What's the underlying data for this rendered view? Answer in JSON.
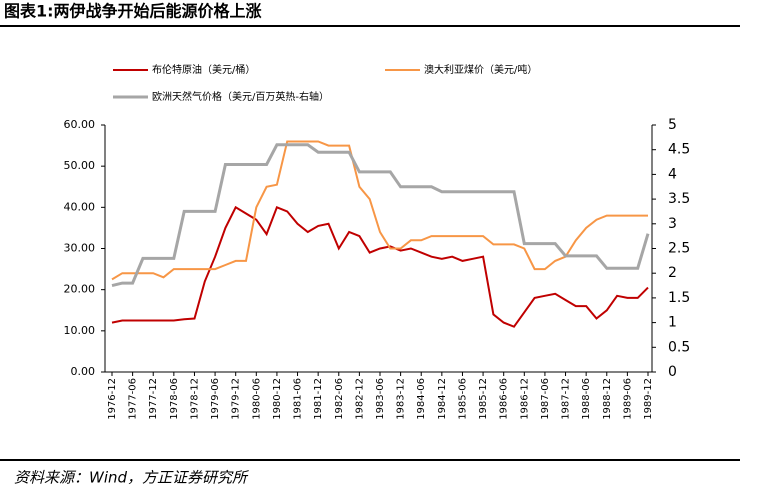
{
  "chart_data": {
    "type": "line",
    "title": "图表1:两伊战争开始后能源价格上涨",
    "source": "资料来源：Wind，方正证券研究所",
    "categories": [
      "1976-12",
      null,
      "1977-06",
      null,
      "1977-12",
      null,
      "1978-06",
      null,
      "1978-12",
      null,
      "1979-06",
      null,
      "1979-12",
      null,
      "1980-06",
      null,
      "1980-12",
      null,
      "1981-06",
      null,
      "1981-12",
      null,
      "1982-06",
      null,
      "1982-12",
      null,
      "1983-06",
      null,
      "1983-12",
      null,
      "1984-06",
      null,
      "1984-12",
      null,
      "1985-06",
      null,
      "1985-12",
      null,
      "1986-06",
      null,
      "1986-12",
      null,
      "1987-06",
      null,
      "1987-12",
      null,
      "1988-06",
      null,
      "1988-12",
      null,
      "1989-06",
      null,
      "1989-12"
    ],
    "series": [
      {
        "name": "布伦特原油（美元/桶）",
        "color": "#c00000",
        "values": [
          12,
          12.5,
          12.5,
          12.5,
          12.5,
          12.5,
          12.5,
          12.8,
          13,
          22,
          28,
          35,
          40,
          38.5,
          37,
          33.5,
          40,
          39,
          36,
          34,
          35.5,
          36,
          30,
          34,
          33,
          29,
          30,
          30.5,
          29.5,
          30,
          29,
          28,
          27.5,
          28,
          27,
          27.5,
          28,
          14,
          12,
          11,
          14.5,
          18,
          18.5,
          19,
          17.5,
          16,
          16,
          13,
          15,
          18.5,
          18,
          18,
          20.5
        ]
      },
      {
        "name": "澳大利亚煤价（美元/吨）",
        "color": "#f79646",
        "values": [
          22.5,
          24,
          24,
          24,
          24,
          23,
          25,
          25,
          25,
          25,
          25,
          26,
          27,
          27,
          40,
          45,
          45.5,
          56,
          56,
          56,
          56,
          55,
          55,
          55,
          45,
          42,
          34,
          30,
          30,
          32,
          32,
          33,
          33,
          33,
          33,
          33,
          33,
          31,
          31,
          31,
          30,
          25,
          25,
          27,
          28,
          32,
          35,
          37,
          38,
          38,
          38,
          38,
          38
        ]
      },
      {
        "name": "欧洲天然气价格（美元/百万英热-右轴）",
        "color": "#a6a6a6",
        "axis": "y2",
        "values": [
          1.75,
          1.8,
          1.8,
          2.3,
          2.3,
          2.3,
          2.3,
          3.25,
          3.25,
          3.25,
          3.25,
          4.2,
          4.2,
          4.2,
          4.2,
          4.2,
          4.6,
          4.6,
          4.6,
          4.6,
          4.45,
          4.45,
          4.45,
          4.45,
          4.05,
          4.05,
          4.05,
          4.05,
          3.75,
          3.75,
          3.75,
          3.75,
          3.65,
          3.65,
          3.65,
          3.65,
          3.65,
          3.65,
          3.65,
          3.65,
          2.6,
          2.6,
          2.6,
          2.6,
          2.35,
          2.35,
          2.35,
          2.35,
          2.1,
          2.1,
          2.1,
          2.1,
          2.8
        ]
      }
    ],
    "ylim": [
      0,
      60
    ],
    "yticks": [
      {
        "value": 0,
        "label": "0.00"
      },
      {
        "value": 10,
        "label": "10.00"
      },
      {
        "value": 20,
        "label": "20.00"
      },
      {
        "value": 30,
        "label": "30.00"
      },
      {
        "value": 40,
        "label": "40.00"
      },
      {
        "value": 50,
        "label": "50.00"
      },
      {
        "value": 60,
        "label": "60.00"
      }
    ],
    "y2lim": [
      0,
      5
    ],
    "y2ticks": [
      0,
      0.5,
      1,
      1.5,
      2,
      2.5,
      3,
      3.5,
      4,
      4.5,
      5
    ]
  }
}
